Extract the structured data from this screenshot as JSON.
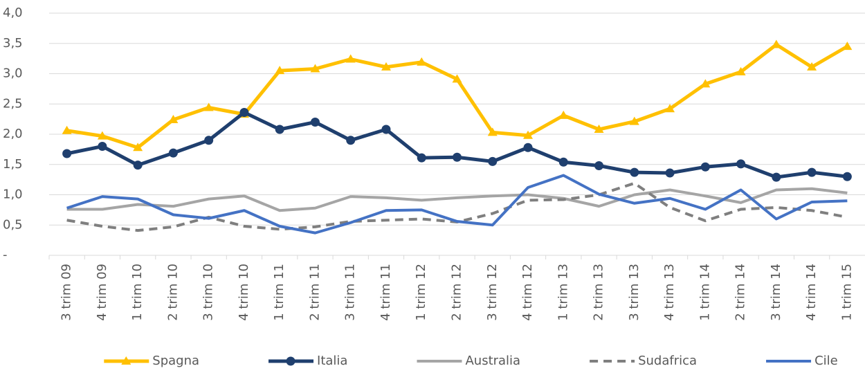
{
  "chart_data": {
    "type": "line",
    "categories": [
      "3 trim 09",
      "4 trim 09",
      "1 trim 10",
      "2 trim 10",
      "3 trim 10",
      "4 trim 10",
      "1 trim 11",
      "2 trim 11",
      "3 trim 11",
      "4 trim 11",
      "1 trim 12",
      "2 trim 12",
      "3 trim 12",
      "4 trim 12",
      "1 trim 13",
      "2 trim 13",
      "3 trim 13",
      "4 trim 13",
      "1 trim 14",
      "2 trim 14",
      "3 trim 14",
      "4 trim 14",
      "1 trim 15"
    ],
    "series": [
      {
        "name": "Spagna",
        "color": "#FFC000",
        "marker": "triangle",
        "values": [
          2.06,
          1.97,
          1.78,
          2.24,
          2.44,
          2.33,
          3.05,
          3.08,
          3.24,
          3.11,
          3.19,
          2.91,
          2.03,
          1.98,
          2.31,
          2.08,
          2.21,
          2.42,
          2.83,
          3.03,
          3.48,
          3.11,
          3.45
        ]
      },
      {
        "name": "Italia",
        "color": "#1F3F6E",
        "marker": "circle",
        "values": [
          1.68,
          1.8,
          1.49,
          1.69,
          1.9,
          2.36,
          2.08,
          2.2,
          1.9,
          2.08,
          1.61,
          1.62,
          1.55,
          1.78,
          1.54,
          1.48,
          1.37,
          1.36,
          1.46,
          1.51,
          1.29,
          1.37,
          1.3
        ]
      },
      {
        "name": "Australia",
        "color": "#A5A5A5",
        "values": [
          0.76,
          0.76,
          0.84,
          0.81,
          0.93,
          0.98,
          0.74,
          0.78,
          0.97,
          0.95,
          0.91,
          0.95,
          0.98,
          1.0,
          0.94,
          0.81,
          1.0,
          1.08,
          0.98,
          0.87,
          1.08,
          1.1,
          1.03
        ]
      },
      {
        "name": "Sudafrica",
        "color": "#7F7F7F",
        "dash": true,
        "values": [
          0.58,
          0.48,
          0.41,
          0.47,
          0.63,
          0.48,
          0.43,
          0.47,
          0.56,
          0.58,
          0.6,
          0.55,
          0.69,
          0.91,
          0.92,
          1.0,
          1.19,
          0.79,
          0.57,
          0.76,
          0.79,
          0.74,
          0.63
        ]
      },
      {
        "name": "Cile",
        "color": "#4472C4",
        "values": [
          0.78,
          0.97,
          0.93,
          0.67,
          0.61,
          0.74,
          0.48,
          0.37,
          0.54,
          0.74,
          0.75,
          0.56,
          0.5,
          1.12,
          1.32,
          1.01,
          0.86,
          0.94,
          0.76,
          1.08,
          0.6,
          0.88,
          0.9
        ]
      }
    ],
    "ylim": [
      0,
      4
    ],
    "yticks": [
      {
        "value": 0,
        "label": "-"
      },
      {
        "value": 0.5,
        "label": "0,5"
      },
      {
        "value": 1,
        "label": "1,0"
      },
      {
        "value": 1.5,
        "label": "1,5"
      },
      {
        "value": 2,
        "label": "2,0"
      },
      {
        "value": 2.5,
        "label": "2,5"
      },
      {
        "value": 3,
        "label": "3,0"
      },
      {
        "value": 3.5,
        "label": "3,5"
      },
      {
        "value": 4,
        "label": "4,0"
      }
    ],
    "grid": true,
    "legend": "bottom"
  }
}
